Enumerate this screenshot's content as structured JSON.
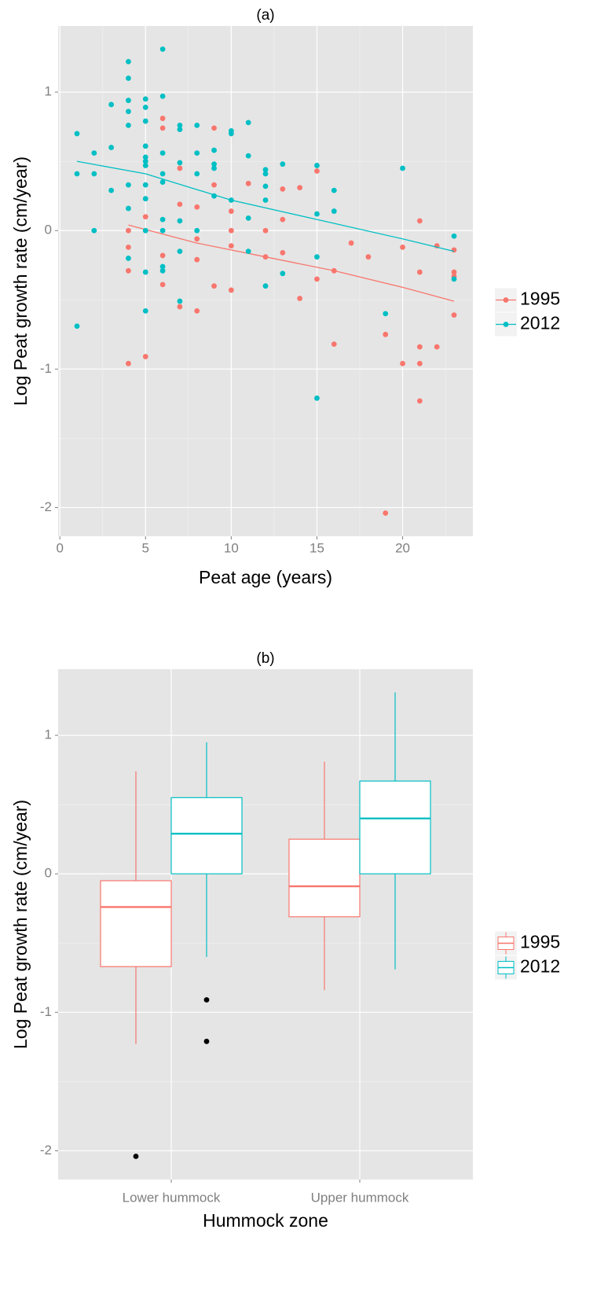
{
  "chart_data": [
    {
      "type": "scatter",
      "title": "(a)",
      "x_label": "Peat age (years)",
      "y_label": "Log Peat growth rate (cm/year)",
      "xlim": [
        -0.1,
        24.1
      ],
      "xticks": [
        0,
        5,
        10,
        15,
        20
      ],
      "ylim": [
        -2.2075,
        1.4775
      ],
      "yticks": [
        -2,
        -1,
        0,
        1
      ],
      "grid": true,
      "legend": "right",
      "series": [
        {
          "name": "1995",
          "color": "#F8766D",
          "x": [
            4,
            4,
            4,
            4,
            5,
            5,
            6,
            6,
            6,
            6,
            7,
            7,
            7,
            8,
            8,
            8,
            8,
            9,
            9,
            9,
            10,
            10,
            10,
            10,
            11,
            12,
            12,
            13,
            13,
            13,
            14,
            14,
            15,
            15,
            16,
            16,
            17,
            18,
            19,
            19,
            20,
            20,
            21,
            21,
            21,
            21,
            21,
            22,
            22,
            23,
            23,
            23,
            23
          ],
          "values": [
            0,
            -0.12,
            -0.29,
            -0.96,
            0.1,
            -0.91,
            0.81,
            0.74,
            -0.18,
            -0.39,
            0.45,
            0.19,
            -0.55,
            0.17,
            -0.06,
            -0.21,
            -0.58,
            0.74,
            0.33,
            -0.4,
            0.14,
            0,
            -0.11,
            -0.43,
            0.34,
            0,
            -0.19,
            0.3,
            0.08,
            -0.16,
            0.31,
            -0.49,
            0.43,
            -0.35,
            -0.29,
            -0.82,
            -0.09,
            -0.19,
            -0.75,
            -2.04,
            -0.12,
            -0.96,
            0.07,
            -0.3,
            -0.84,
            -0.96,
            -1.23,
            -0.11,
            -0.84,
            -0.14,
            -0.3,
            -0.33,
            -0.61
          ],
          "trend": {
            "x": [
              4,
              8,
              12,
              16,
              20,
              23
            ],
            "values": [
              0.04,
              -0.09,
              -0.19,
              -0.29,
              -0.41,
              -0.51
            ]
          }
        },
        {
          "name": "2012",
          "color": "#00BFC4",
          "x": [
            1,
            1,
            1,
            2,
            2,
            2,
            3,
            3,
            3,
            4,
            4,
            4,
            4,
            4,
            4,
            4,
            4,
            5,
            5,
            5,
            5,
            5,
            5,
            5,
            5,
            5,
            5,
            5,
            5,
            6,
            6,
            6,
            6,
            6,
            6,
            6,
            6,
            6,
            7,
            7,
            7,
            7,
            7,
            7,
            8,
            8,
            8,
            8,
            9,
            9,
            9,
            9,
            10,
            10,
            10,
            11,
            11,
            11,
            11,
            12,
            12,
            12,
            12,
            12,
            13,
            13,
            15,
            15,
            15,
            15,
            16,
            16,
            19,
            20,
            23,
            23
          ],
          "values": [
            0.7,
            0.41,
            -0.69,
            0.56,
            0.41,
            0,
            0.91,
            0.6,
            0.29,
            1.22,
            1.1,
            0.94,
            0.86,
            0.76,
            0.33,
            0.16,
            -0.2,
            0.95,
            0.89,
            0.79,
            0.61,
            0.53,
            0.5,
            0.47,
            0.33,
            0.23,
            0,
            -0.3,
            -0.58,
            1.31,
            0.97,
            0.56,
            0.41,
            0.35,
            0.08,
            0,
            -0.26,
            -0.29,
            0.76,
            0.73,
            0.49,
            0.07,
            -0.15,
            -0.51,
            0.76,
            0.56,
            0.41,
            0,
            0.58,
            0.48,
            0.45,
            0.25,
            0.72,
            0.7,
            0.22,
            0.78,
            0.54,
            0.09,
            -0.15,
            0.44,
            0.41,
            0.32,
            0.22,
            -0.4,
            0.48,
            -0.31,
            0.47,
            0.12,
            -0.19,
            -1.21,
            0.29,
            0.14,
            -0.6,
            0.45,
            -0.04,
            -0.35
          ],
          "trend": {
            "x": [
              1,
              5,
              10,
              15,
              20,
              23
            ],
            "values": [
              0.5,
              0.41,
              0.22,
              0.08,
              -0.06,
              -0.15
            ]
          }
        }
      ]
    },
    {
      "type": "box",
      "title": "(b)",
      "x_label": "Hummock zone",
      "y_label": "Log Peat growth rate (cm/year)",
      "categories": [
        "Lower hummock",
        "Upper hummock"
      ],
      "ylim": [
        -2.2075,
        1.4775
      ],
      "yticks": [
        -2,
        -1,
        0,
        1
      ],
      "grid": true,
      "legend": "right",
      "outlier_color": "#000000",
      "series": [
        {
          "name": "1995",
          "color": "#F8766D",
          "boxes": [
            {
              "low": -1.23,
              "q1": -0.67,
              "median": -0.24,
              "q3": -0.05,
              "high": 0.74,
              "outliers": [
                -2.04
              ]
            },
            {
              "low": -0.84,
              "q1": -0.31,
              "median": -0.09,
              "q3": 0.25,
              "high": 0.81
            }
          ]
        },
        {
          "name": "2012",
          "color": "#00BFC4",
          "boxes": [
            {
              "low": -0.6,
              "q1": 0,
              "median": 0.29,
              "q3": 0.55,
              "high": 0.95,
              "outliers": [
                -0.91,
                -1.21
              ]
            },
            {
              "low": -0.69,
              "q1": 0,
              "median": 0.4,
              "q3": 0.67,
              "high": 1.31
            }
          ]
        }
      ]
    }
  ]
}
